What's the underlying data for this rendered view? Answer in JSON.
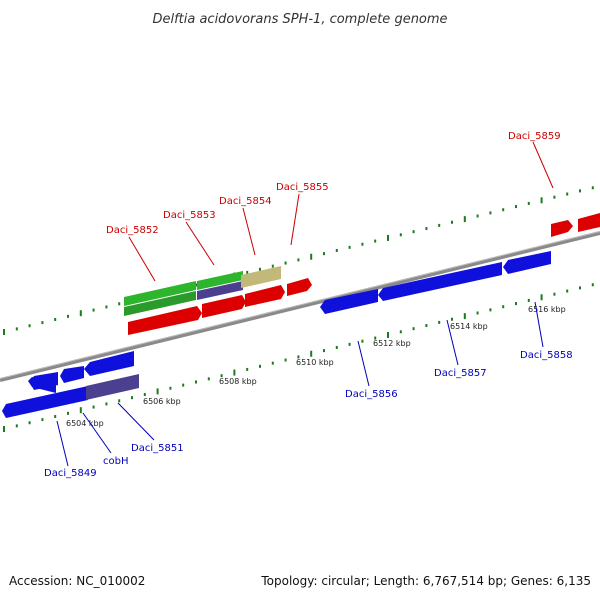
{
  "title": "Delftia acidovorans SPH-1, complete genome",
  "footer": {
    "accession": "Accession: NC_010002",
    "summary": "Topology: circular; Length: 6,767,514 bp; Genes: 6,135"
  },
  "colors": {
    "forward_gene": "#dd0000",
    "reverse_gene": "#1010dd",
    "rna_gene": "#2db52d",
    "pseudo_gene": "#c2b87a",
    "overlap_gene": "#4b3f8f",
    "backbone": "#8a8a8a",
    "tick": "#1f7a1f",
    "forward_label": "#cc0000",
    "reverse_label": "#0000bb"
  },
  "kbp_ticks": [
    {
      "label": "6504 kbp"
    },
    {
      "label": "6506 kbp"
    },
    {
      "label": "6508 kbp"
    },
    {
      "label": "6510 kbp"
    },
    {
      "label": "6512 kbp"
    },
    {
      "label": "6514 kbp"
    },
    {
      "label": "6516 kbp"
    }
  ],
  "forward_genes": [
    {
      "label": "Daci_5852"
    },
    {
      "label": "Daci_5853"
    },
    {
      "label": "Daci_5854"
    },
    {
      "label": "Daci_5855"
    },
    {
      "label": "Daci_5859"
    }
  ],
  "reverse_genes": [
    {
      "label": "Daci_5849"
    },
    {
      "label": "cobH"
    },
    {
      "label": "Daci_5851"
    },
    {
      "label": "Daci_5856"
    },
    {
      "label": "Daci_5857"
    },
    {
      "label": "Daci_5858"
    }
  ]
}
